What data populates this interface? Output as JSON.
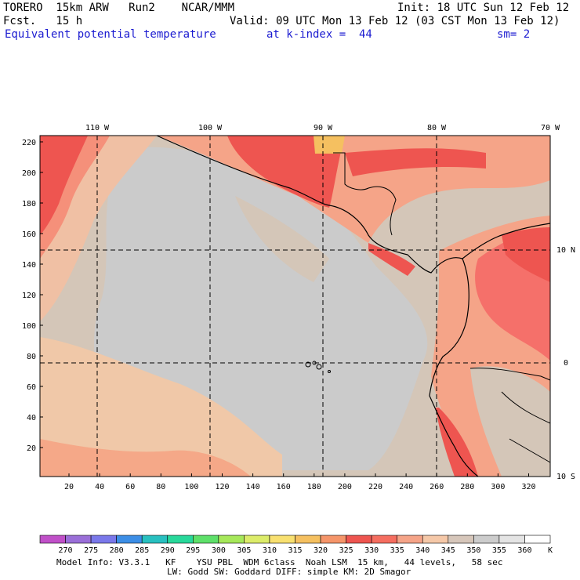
{
  "header": {
    "model": "TORERO  15km ARW   Run2    NCAR/MMM",
    "init": "Init: 18 UTC Sun 12 Feb 12",
    "fcst": "Fcst.   15 h",
    "valid": "Valid: 09 UTC Mon 13 Feb 12 (03 CST Mon 13 Feb 12)",
    "field": "Equivalent potential temperature",
    "level": "at k-index =  44",
    "smooth": "sm= 2"
  },
  "axes": {
    "lon_labels": [
      "110 W",
      "100 W",
      "90 W",
      "80 W",
      "70 W"
    ],
    "lat_labels": [
      "10 N",
      "0",
      "10 S"
    ],
    "y_ticks": [
      "220",
      "200",
      "180",
      "160",
      "140",
      "120",
      "100",
      "80",
      "60",
      "40",
      "20"
    ],
    "x_ticks": [
      "20",
      "40",
      "60",
      "80",
      "100",
      "120",
      "140",
      "160",
      "180",
      "200",
      "220",
      "240",
      "260",
      "280",
      "300",
      "320"
    ]
  },
  "colorbar": {
    "values": [
      "270",
      "275",
      "280",
      "285",
      "290",
      "295",
      "300",
      "305",
      "310",
      "315",
      "320",
      "325",
      "330",
      "335",
      "340",
      "345",
      "350",
      "355",
      "360"
    ],
    "unit": "K",
    "colors": [
      "#c050c8",
      "#9a6fd8",
      "#7a78ea",
      "#3c8ee6",
      "#28c0c0",
      "#28d89a",
      "#5ee06a",
      "#a6e85a",
      "#dcec6a",
      "#f8e070",
      "#f5c060",
      "#f5956a",
      "#ee5550",
      "#f56e60",
      "#f5a488",
      "#f5c8a8",
      "#d6c6ba",
      "#cccccc",
      "#e4e4e4",
      "#ffffff"
    ]
  },
  "footer": {
    "line1": "Model Info: V3.3.1   KF    YSU PBL  WDM 6class  Noah LSM  15 km,   44 levels,   58 sec",
    "line2": "LW: Godd SW: Goddard DIFF: simple KM: 2D Smagor"
  }
}
